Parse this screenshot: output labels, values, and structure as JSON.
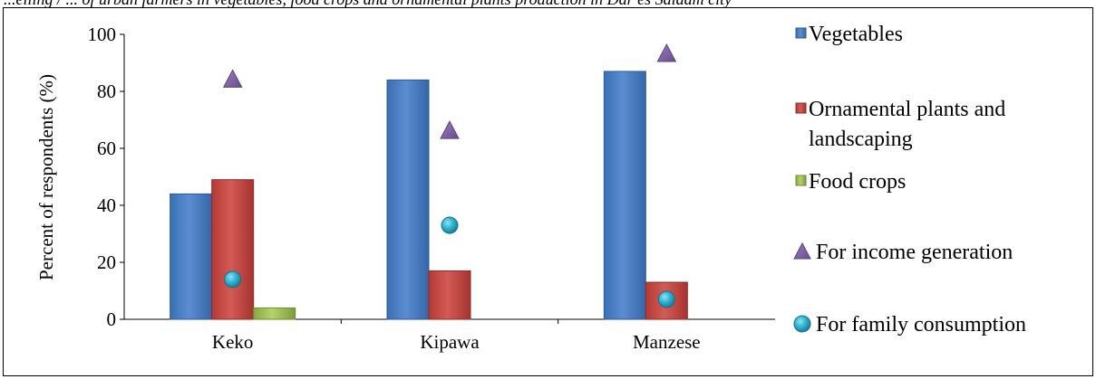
{
  "page": {
    "top_caption": "...elling / ... of urban farmers in vegetables, food crops and ornamental plants production in Dar es Salaam city"
  },
  "chart_data": {
    "type": "bar",
    "categories": [
      "Keko",
      "Kipawa",
      "Manzese"
    ],
    "ylabel": "Percent of respondents (%)",
    "xlabel": "",
    "ylim": [
      0,
      100
    ],
    "yticks": [
      0,
      20,
      40,
      60,
      80,
      100
    ],
    "grid": false,
    "legend_position": "right",
    "series": [
      {
        "name": "Vegetables",
        "kind": "bar",
        "color": "#4F81BD",
        "values": [
          44,
          84,
          87
        ]
      },
      {
        "name": "Ornamental plants and landscaping",
        "kind": "bar",
        "color": "#C0504D",
        "values": [
          49,
          17,
          13
        ]
      },
      {
        "name": "Food crops",
        "kind": "bar",
        "color": "#9BBB59",
        "values": [
          4,
          0,
          0
        ]
      },
      {
        "name": "For income generation",
        "kind": "marker",
        "marker": "triangle",
        "color": "#8064A2",
        "values": [
          84,
          66,
          93
        ]
      },
      {
        "name": "For family consumption",
        "kind": "marker",
        "marker": "circle",
        "color": "#31B6D3",
        "values": [
          14,
          33,
          7
        ]
      }
    ],
    "legend_lines": [
      [
        "Vegetables"
      ],
      [
        "Ornamental plants and",
        "landscaping"
      ],
      [
        "Food crops"
      ],
      [
        "For income generation"
      ],
      [
        "For family consumption"
      ]
    ]
  }
}
